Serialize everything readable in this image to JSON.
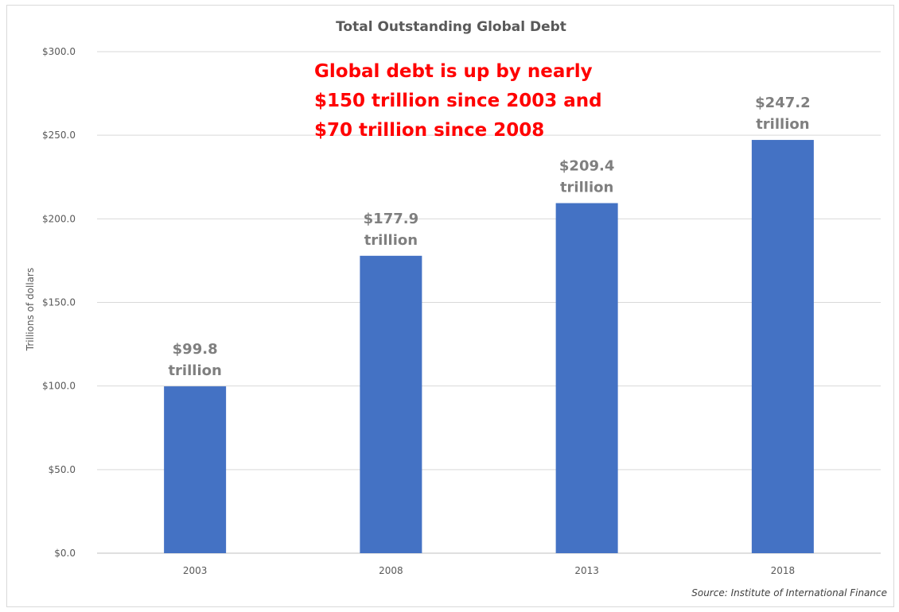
{
  "chart_data": {
    "type": "bar",
    "title": "Total Outstanding Global Debt",
    "xlabel": "",
    "ylabel": "Trillions of dollars",
    "categories": [
      "2003",
      "2008",
      "2013",
      "2018"
    ],
    "values": [
      99.8,
      177.9,
      209.4,
      247.2
    ],
    "data_labels": [
      [
        "$99.8",
        "trillion"
      ],
      [
        "$177.9",
        "trillion"
      ],
      [
        "$209.4",
        "trillion"
      ],
      [
        "$247.2",
        "trillion"
      ]
    ],
    "ylim": [
      0,
      300
    ],
    "y_ticks": [
      0,
      50,
      100,
      150,
      200,
      250,
      300
    ],
    "y_tick_labels": [
      "$0.0",
      "$50.0",
      "$100.0",
      "$150.0",
      "$200.0",
      "$250.0",
      "$300.0"
    ],
    "grid": true,
    "legend": "none",
    "bar_color": "#4472c4",
    "annotation": {
      "lines": [
        "Global debt is up by nearly",
        "$150 trillion since 2003 and",
        "$70 trillion since 2008"
      ],
      "color": "#ff0000"
    },
    "source": "Source: Institute of International Finance"
  }
}
